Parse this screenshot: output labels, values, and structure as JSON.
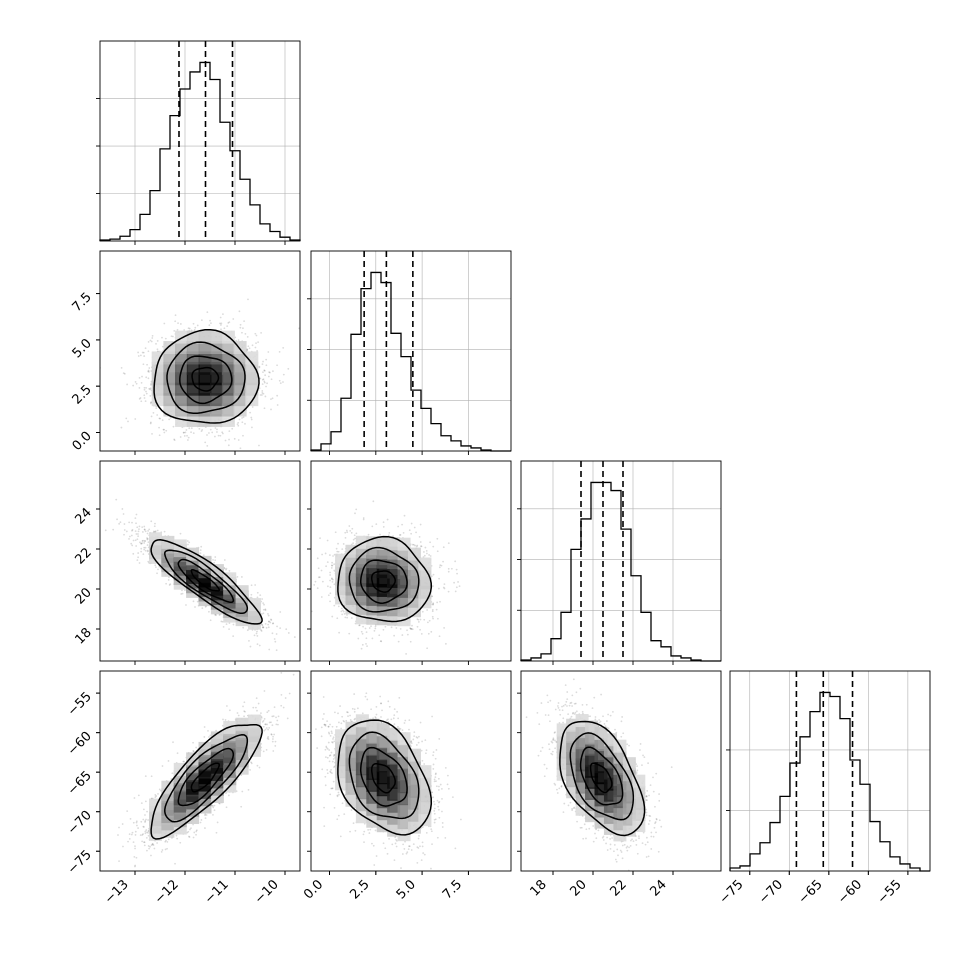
{
  "chart_data": {
    "type": "corner",
    "grid": true,
    "quantile_lines": "dashed",
    "parameters": [
      {
        "index": 0,
        "range": [
          -13.7,
          -9.7
        ],
        "ticks": [
          -13,
          -12,
          -11,
          -10
        ],
        "tick_labels": [
          "−13",
          "−12",
          "−11",
          "−10"
        ],
        "quantiles": [
          -12.12,
          -11.59,
          -11.05
        ]
      },
      {
        "index": 1,
        "range": [
          -1.0,
          9.8
        ],
        "ticks": [
          0.0,
          2.5,
          5.0,
          7.5
        ],
        "tick_labels": [
          "0.0",
          "2.5",
          "5.0",
          "7.5"
        ],
        "quantiles": [
          1.87,
          3.07,
          4.5
        ]
      },
      {
        "index": 2,
        "range": [
          16.4,
          26.4
        ],
        "ticks": [
          18,
          20,
          22,
          24
        ],
        "tick_labels": [
          "18",
          "20",
          "22",
          "24"
        ],
        "quantiles": [
          19.4,
          20.5,
          21.5
        ]
      },
      {
        "index": 3,
        "range": [
          -77.5,
          -52.2
        ],
        "ticks": [
          -75,
          -70,
          -65,
          -60,
          -55
        ],
        "tick_labels": [
          "−75",
          "−70",
          "−65",
          "−60",
          "−55"
        ],
        "quantiles": [
          -69.1,
          -65.7,
          -62.0
        ]
      }
    ],
    "histograms": [
      {
        "param": 0,
        "bin_edges": [
          -13.7,
          -13.5,
          -13.3,
          -13.1,
          -12.9,
          -12.7,
          -12.5,
          -12.3,
          -12.1,
          -11.9,
          -11.7,
          -11.5,
          -11.3,
          -11.1,
          -10.9,
          -10.7,
          -10.5,
          -10.3,
          -10.1,
          -9.9,
          -9.7
        ],
        "counts": [
          1,
          2,
          5,
          12,
          28,
          53,
          97,
          132,
          160,
          178,
          188,
          170,
          125,
          95,
          65,
          38,
          18,
          10,
          4,
          1
        ],
        "y_ticks": [
          50,
          100,
          150
        ]
      },
      {
        "param": 1,
        "bin_edges": [
          -1.0,
          -0.46,
          0.08,
          0.62,
          1.16,
          1.7,
          2.24,
          2.78,
          3.32,
          3.86,
          4.4,
          4.94,
          5.48,
          6.02,
          6.56,
          7.1,
          7.64,
          8.18,
          8.72,
          9.26,
          9.8
        ],
        "counts": [
          1,
          7,
          19,
          52,
          115,
          160,
          176,
          166,
          116,
          93,
          60,
          42,
          27,
          15,
          10,
          5,
          3,
          1,
          0,
          0
        ],
        "y_ticks": [
          50,
          100,
          150
        ]
      },
      {
        "param": 2,
        "bin_edges": [
          16.4,
          16.9,
          17.4,
          17.9,
          18.4,
          18.9,
          19.4,
          19.9,
          20.4,
          20.9,
          21.4,
          21.9,
          22.4,
          22.9,
          23.4,
          23.9,
          24.4,
          24.9,
          25.4,
          25.9,
          26.4
        ],
        "counts": [
          1,
          3,
          7,
          22,
          48,
          110,
          140,
          176,
          176,
          168,
          130,
          84,
          48,
          20,
          14,
          5,
          3,
          1,
          0,
          0
        ],
        "y_ticks": [
          50,
          100,
          150
        ]
      },
      {
        "param": 3,
        "bin_edges": [
          -77.5,
          -76.235,
          -74.97,
          -73.705,
          -72.44,
          -71.175,
          -69.91,
          -68.645,
          -67.38,
          -66.115,
          -64.85,
          -63.585,
          -62.32,
          -61.055,
          -59.79,
          -58.525,
          -57.26,
          -55.995,
          -54.73,
          -53.465,
          -52.2
        ],
        "counts": [
          3,
          5,
          17,
          28,
          48,
          74,
          107,
          133,
          158,
          177,
          173,
          151,
          110,
          86,
          49,
          29,
          14,
          7,
          3,
          0
        ],
        "y_ticks": [
          60,
          120
        ]
      }
    ],
    "joint": [
      {
        "x_param": 0,
        "y_param": 1,
        "mean": [
          -11.6,
          2.9
        ],
        "sd": [
          0.52,
          1.25
        ],
        "corr": 0.0
      },
      {
        "x_param": 0,
        "y_param": 2,
        "mean": [
          -11.6,
          20.4
        ],
        "sd": [
          0.55,
          1.05
        ],
        "corr": -0.87
      },
      {
        "x_param": 1,
        "y_param": 2,
        "mean": [
          2.9,
          20.4
        ],
        "sd": [
          1.25,
          1.05
        ],
        "corr": -0.05
      },
      {
        "x_param": 0,
        "y_param": 3,
        "mean": [
          -11.6,
          -65.7
        ],
        "sd": [
          0.55,
          3.6
        ],
        "corr": 0.82
      },
      {
        "x_param": 1,
        "y_param": 3,
        "mean": [
          2.9,
          -65.7
        ],
        "sd": [
          1.25,
          3.6
        ],
        "corr": -0.35
      },
      {
        "x_param": 2,
        "y_param": 3,
        "mean": [
          20.4,
          -65.7
        ],
        "sd": [
          1.05,
          3.6
        ],
        "corr": -0.5
      }
    ],
    "contour_levels_sigma": [
      0.5,
      1.0,
      1.5,
      2.0
    ]
  },
  "colors": {
    "axis": "#000000",
    "grid": "#b0b0b0",
    "points": "#000000",
    "contour": "#000000"
  }
}
